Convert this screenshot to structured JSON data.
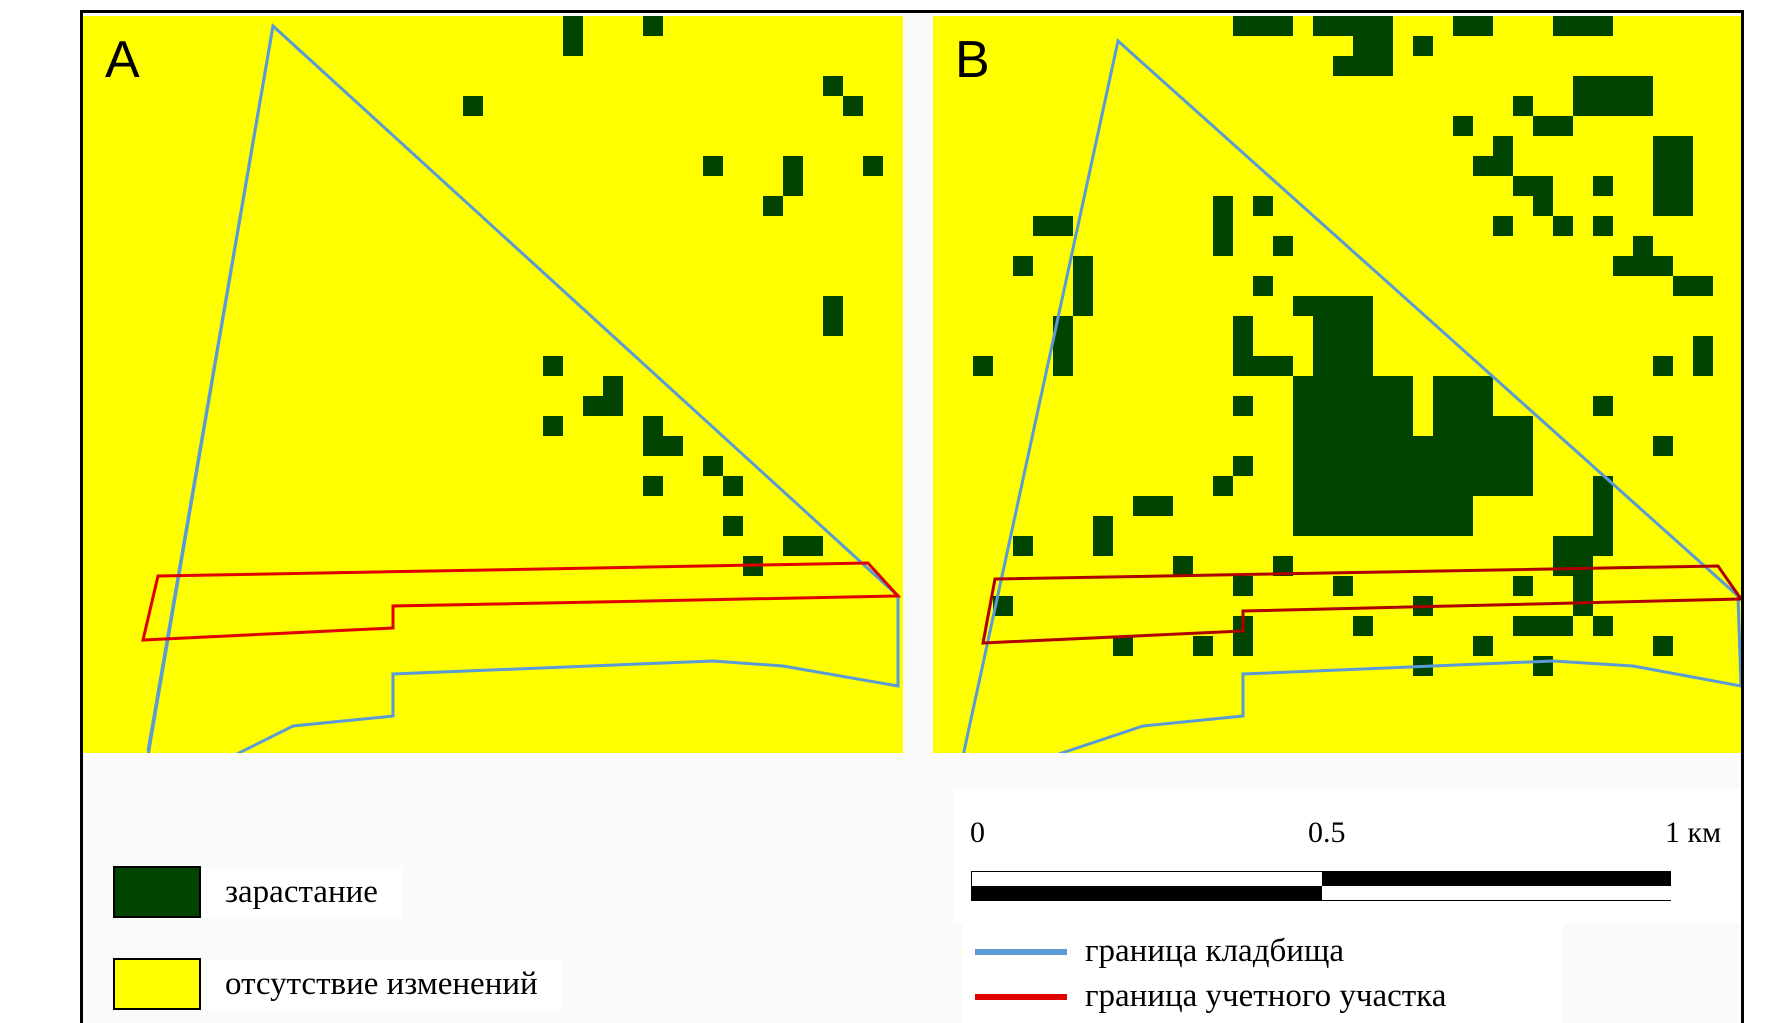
{
  "colors": {
    "overgrowth": "#004400",
    "no_change": "#ffff00",
    "cemetery_boundary": "#5b9bd5",
    "plot_boundary": "#e00000"
  },
  "panels": [
    {
      "label": "A"
    },
    {
      "label": "B"
    }
  ],
  "legend": {
    "fill_items": [
      {
        "label": "зарастание"
      },
      {
        "label": "отсутствие изменений"
      }
    ],
    "line_items": [
      {
        "label": "граница кладбища"
      },
      {
        "label": "граница учетного участка"
      }
    ]
  },
  "scale": {
    "ticks": [
      "0",
      "0.5",
      "1 км"
    ]
  }
}
